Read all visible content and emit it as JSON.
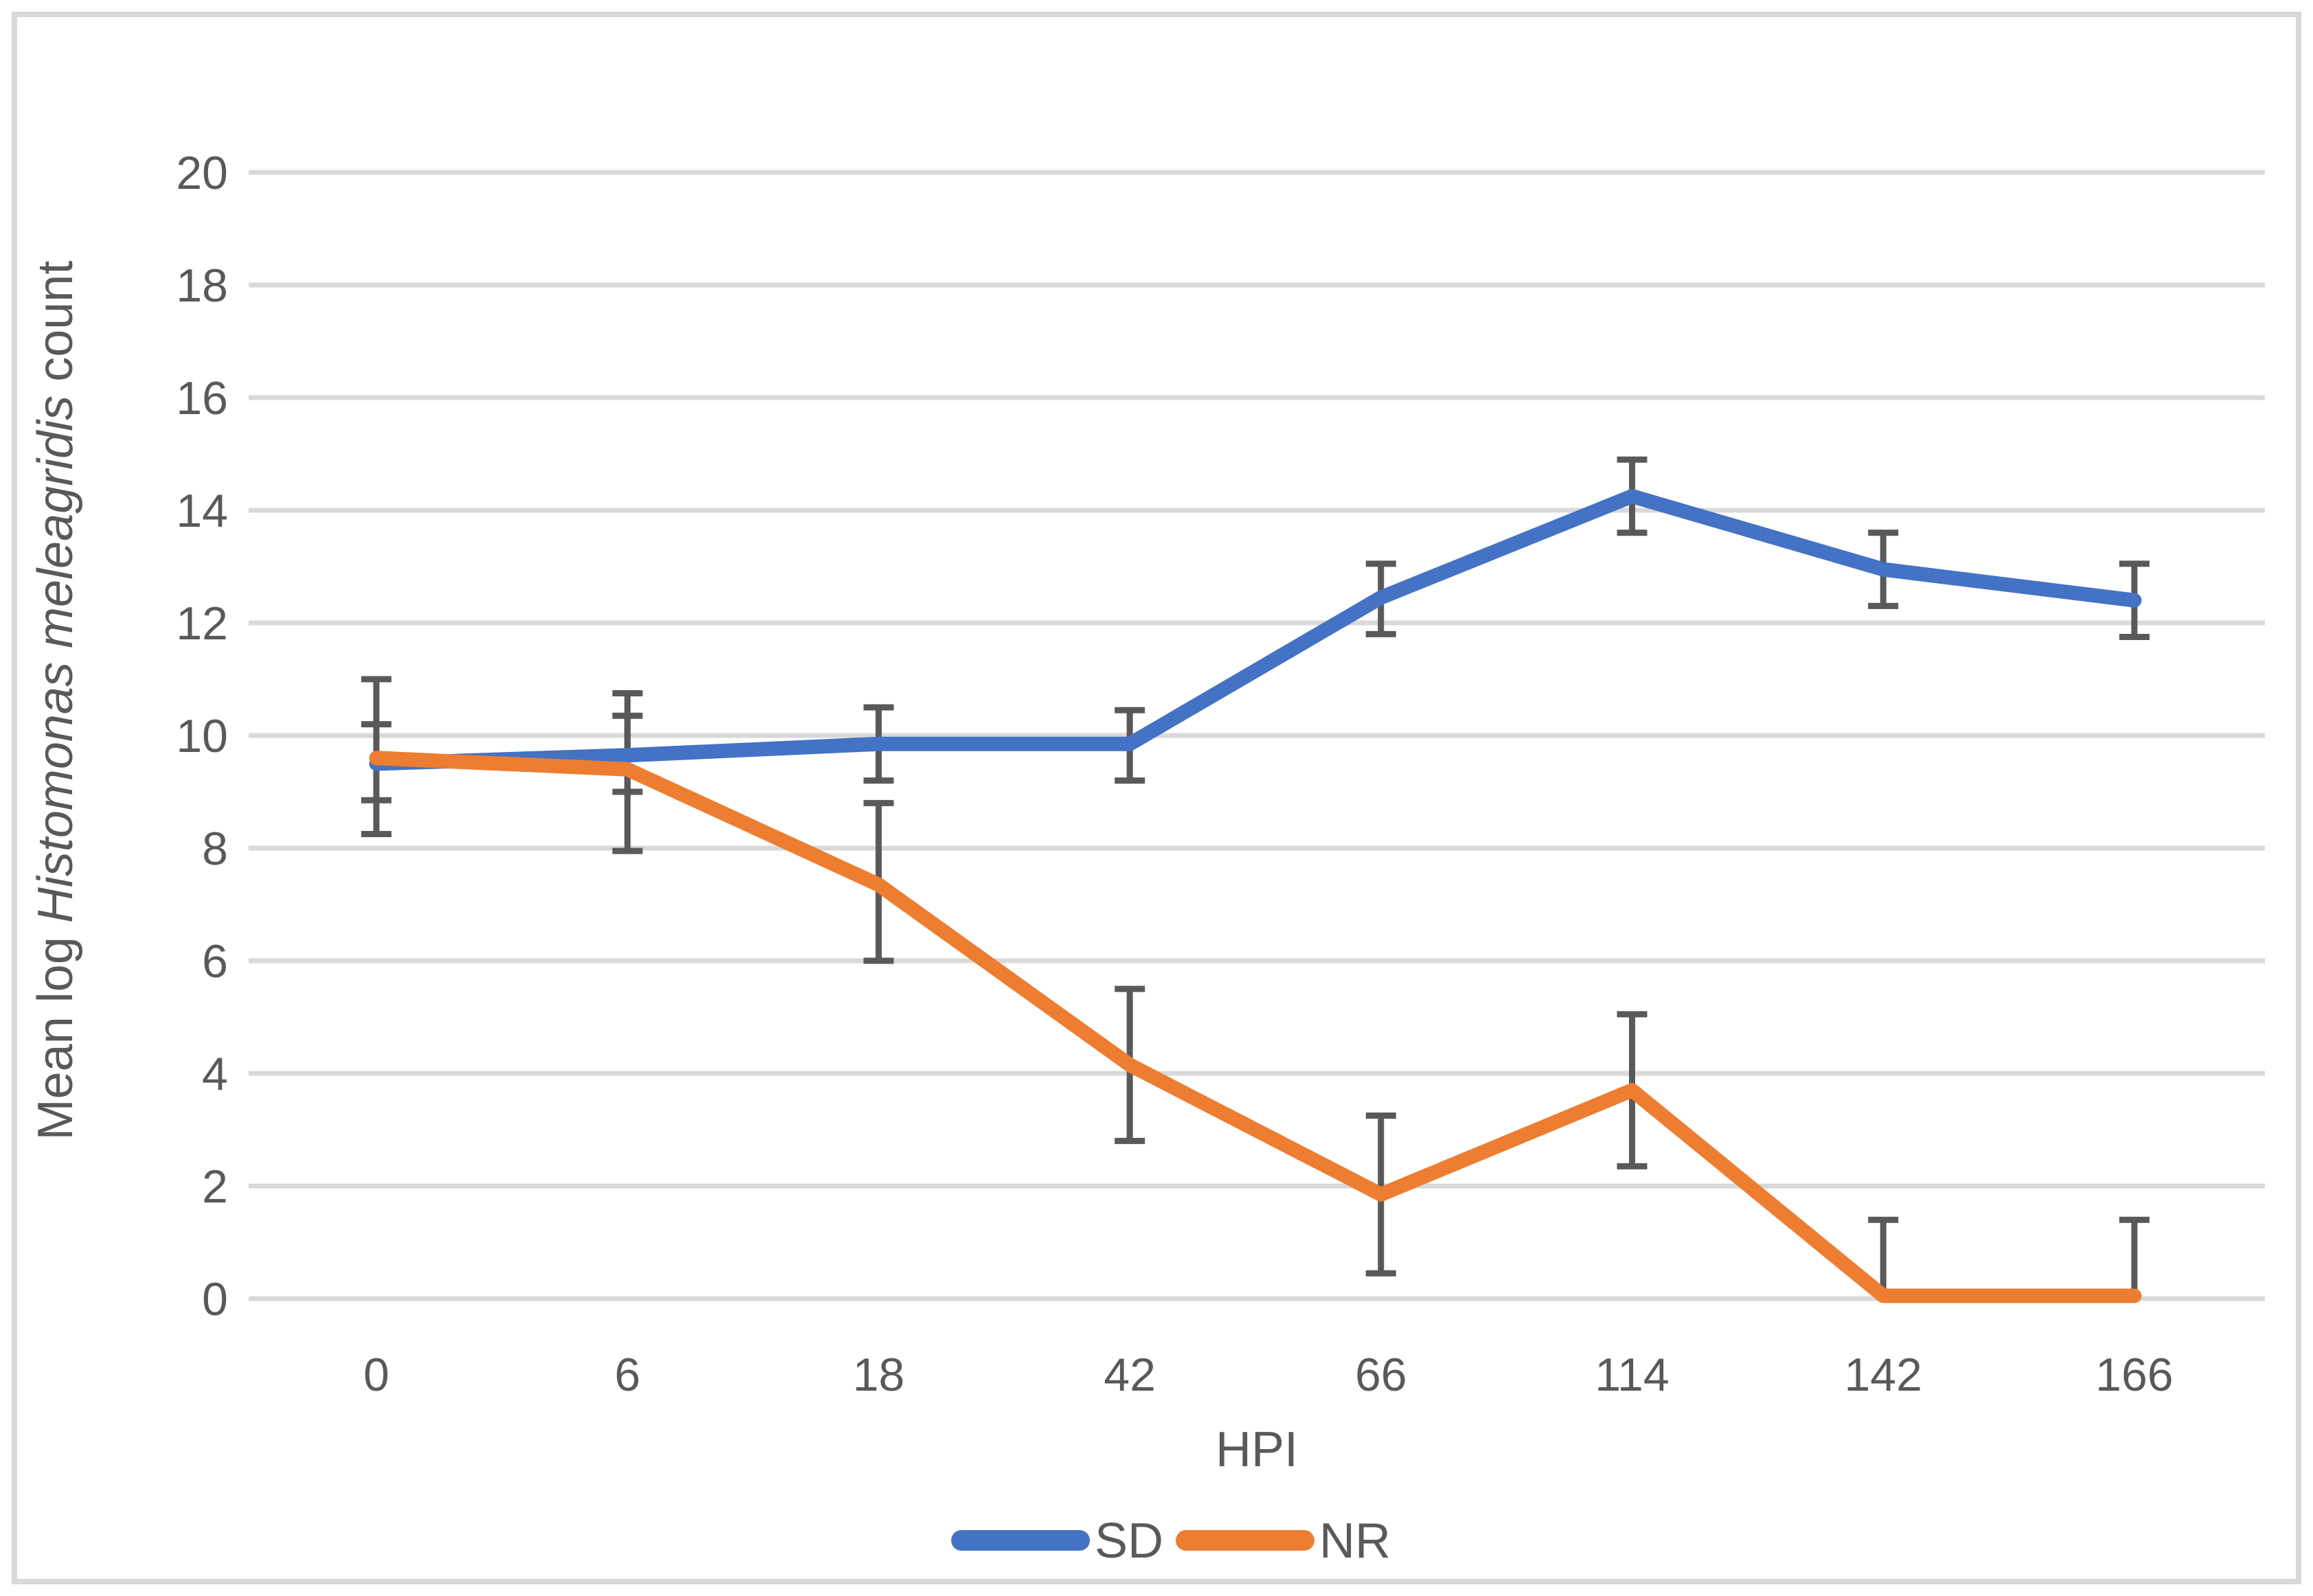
{
  "frame": {
    "background_color": "#FFFFFF",
    "border_color": "#D9D9D9"
  },
  "chart_data": {
    "type": "line",
    "categories": [
      "0",
      "6",
      "18",
      "42",
      "66",
      "114",
      "142",
      "166"
    ],
    "x_axis": {
      "title": "HPI",
      "tick_labels": [
        "0",
        "6",
        "18",
        "42",
        "66",
        "114",
        "142",
        "166"
      ]
    },
    "y_axis": {
      "title_parts": [
        {
          "text": "Mean  log ",
          "italic": false
        },
        {
          "text": "Histomonas meleagridis",
          "italic": true
        },
        {
          "text": " count",
          "italic": false
        }
      ],
      "min": 0,
      "max": 20,
      "tick_interval": 2,
      "tick_labels": [
        "0",
        "2",
        "4",
        "6",
        "8",
        "10",
        "12",
        "14",
        "16",
        "18",
        "20"
      ]
    },
    "grid": "horizontal",
    "gridline_color": "#D9D9D9",
    "text_color": "#595959",
    "error_bar_color": "#595959",
    "legend": {
      "position": "bottom",
      "entries": [
        {
          "label": "SD",
          "color": "#4472C4"
        },
        {
          "label": "NR",
          "color": "#ED7D31"
        }
      ]
    },
    "series": [
      {
        "name": "SD",
        "color": "#4472C4",
        "values": [
          9.5,
          9.65,
          9.85,
          9.85,
          12.45,
          14.25,
          12.95,
          12.4
        ],
        "error_low": [
          8.85,
          9.0,
          9.2,
          9.2,
          11.8,
          13.6,
          12.3,
          11.75
        ],
        "error_high": [
          10.2,
          10.35,
          10.5,
          10.45,
          13.05,
          14.9,
          13.6,
          13.05
        ]
      },
      {
        "name": "NR",
        "color": "#ED7D31",
        "values": [
          9.6,
          9.4,
          7.35,
          4.15,
          1.85,
          3.7,
          0.05,
          0.05
        ],
        "error_low": [
          8.25,
          7.95,
          6.0,
          2.8,
          0.45,
          2.35,
          0.05,
          0.05
        ],
        "error_high": [
          11.0,
          10.75,
          8.8,
          5.5,
          3.25,
          5.05,
          1.4,
          1.4
        ]
      }
    ]
  }
}
